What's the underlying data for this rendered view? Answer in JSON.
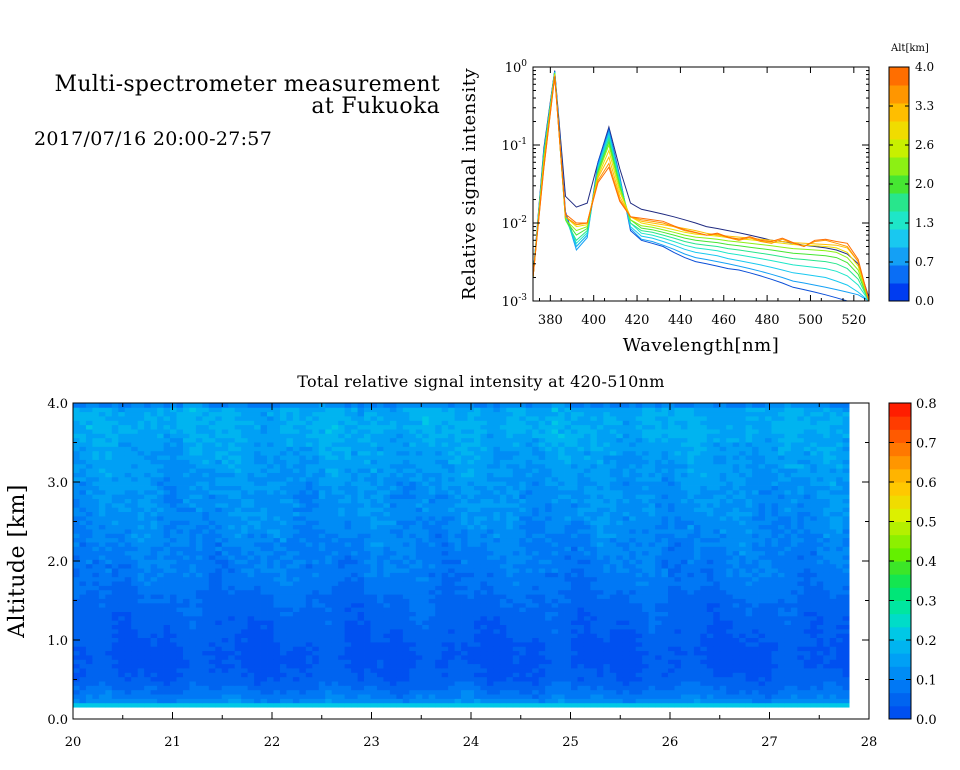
{
  "header": {
    "title_line1": "Multi-spectrometer measurement",
    "title_line2": "at Fukuoka",
    "datetime": "2017/07/16 20:00-27:57"
  },
  "chart_data": [
    {
      "type": "line",
      "title": "",
      "xlabel": "Wavelength[nm]",
      "ylabel": "Relative signal intensity",
      "xlim": [
        372,
        527
      ],
      "ylim": [
        0.001,
        1
      ],
      "yscale": "log",
      "xticks": [
        "380",
        "400",
        "420",
        "440",
        "460",
        "480",
        "500",
        "520"
      ],
      "xtick_values": [
        380,
        400,
        420,
        440,
        460,
        480,
        500,
        520
      ],
      "ytick_labels": [
        "10",
        "10",
        "10",
        "10"
      ],
      "ytick_exponents": [
        "0",
        "-1",
        "-2",
        "-3"
      ],
      "ytick_values": [
        1,
        0.1,
        0.01,
        0.001
      ],
      "x": [
        372,
        377,
        382,
        387,
        392,
        397,
        402,
        407,
        412,
        417,
        422,
        427,
        432,
        437,
        442,
        447,
        452,
        457,
        462,
        467,
        472,
        477,
        482,
        487,
        492,
        497,
        502,
        507,
        512,
        517,
        522,
        527
      ],
      "colorbar": {
        "title": "Alt[km]",
        "ticks": [
          "4.0",
          "3.3",
          "2.6",
          "2.0",
          "1.3",
          "0.7",
          "0.0"
        ],
        "colors": [
          "#003cf0",
          "#0a6ef5",
          "#14a0f5",
          "#19c8f0",
          "#1ee6c8",
          "#28e68c",
          "#46e632",
          "#8cf014",
          "#c8f000",
          "#f0dc00",
          "#ffbe00",
          "#ff9600",
          "#ff6e00"
        ]
      },
      "series": [
        {
          "color": "#1f2a80",
          "values": [
            0.002,
            0.09,
            0.9,
            0.022,
            0.016,
            0.018,
            0.06,
            0.17,
            0.05,
            0.018,
            0.015,
            0.014,
            0.013,
            0.012,
            0.011,
            0.01,
            0.009,
            0.0085,
            0.008,
            0.0075,
            0.007,
            0.0065,
            0.006,
            0.0058,
            0.0055,
            0.0052,
            0.005,
            0.0048,
            0.0045,
            0.004,
            0.003,
            0.0011
          ]
        },
        {
          "color": "#0a4fd8",
          "values": [
            0.002,
            0.08,
            0.88,
            0.014,
            0.005,
            0.007,
            0.06,
            0.16,
            0.04,
            0.008,
            0.006,
            0.0055,
            0.005,
            0.0042,
            0.0036,
            0.0032,
            0.003,
            0.0028,
            0.0026,
            0.0025,
            0.0023,
            0.0021,
            0.0019,
            0.0017,
            0.0015,
            0.0014,
            0.0013,
            0.0012,
            0.0011,
            0.001,
            0.001,
            0.001
          ]
        },
        {
          "color": "#14a0f5",
          "values": [
            0.002,
            0.08,
            0.87,
            0.013,
            0.0045,
            0.0065,
            0.055,
            0.15,
            0.038,
            0.0085,
            0.0062,
            0.0058,
            0.0052,
            0.0046,
            0.004,
            0.0036,
            0.0034,
            0.0032,
            0.003,
            0.0028,
            0.0026,
            0.0024,
            0.0022,
            0.002,
            0.0018,
            0.0017,
            0.0016,
            0.0015,
            0.0014,
            0.0013,
            0.0012,
            0.001
          ]
        },
        {
          "color": "#19c8f0",
          "values": [
            0.002,
            0.08,
            0.86,
            0.012,
            0.005,
            0.007,
            0.052,
            0.14,
            0.036,
            0.009,
            0.0068,
            0.0064,
            0.0058,
            0.0052,
            0.0046,
            0.0042,
            0.004,
            0.0038,
            0.0035,
            0.0033,
            0.0031,
            0.0029,
            0.0027,
            0.0025,
            0.0023,
            0.0022,
            0.0021,
            0.002,
            0.0018,
            0.0016,
            0.0013,
            0.001
          ]
        },
        {
          "color": "#1ee6c8",
          "values": [
            0.002,
            0.07,
            0.85,
            0.012,
            0.0055,
            0.0075,
            0.05,
            0.13,
            0.034,
            0.01,
            0.0074,
            0.007,
            0.0064,
            0.0058,
            0.0052,
            0.0048,
            0.0046,
            0.0044,
            0.0041,
            0.0039,
            0.0037,
            0.0035,
            0.0033,
            0.0031,
            0.0029,
            0.0028,
            0.0027,
            0.0026,
            0.0024,
            0.0021,
            0.0016,
            0.001
          ]
        },
        {
          "color": "#28e68c",
          "values": [
            0.002,
            0.07,
            0.84,
            0.011,
            0.006,
            0.008,
            0.048,
            0.12,
            0.032,
            0.01,
            0.008,
            0.0076,
            0.007,
            0.0064,
            0.0058,
            0.0054,
            0.0052,
            0.005,
            0.0047,
            0.0045,
            0.0043,
            0.0041,
            0.0039,
            0.0037,
            0.0035,
            0.0034,
            0.0033,
            0.0032,
            0.003,
            0.0026,
            0.0019,
            0.001
          ]
        },
        {
          "color": "#46e632",
          "values": [
            0.002,
            0.07,
            0.83,
            0.011,
            0.007,
            0.0085,
            0.045,
            0.11,
            0.03,
            0.011,
            0.0086,
            0.0082,
            0.0076,
            0.007,
            0.0064,
            0.006,
            0.0058,
            0.0056,
            0.0053,
            0.0051,
            0.0049,
            0.0047,
            0.0045,
            0.0043,
            0.0041,
            0.004,
            0.0039,
            0.0038,
            0.0036,
            0.0031,
            0.0022,
            0.001
          ]
        },
        {
          "color": "#8cf014",
          "values": [
            0.002,
            0.06,
            0.82,
            0.011,
            0.008,
            0.009,
            0.043,
            0.1,
            0.028,
            0.011,
            0.0092,
            0.0088,
            0.0082,
            0.0076,
            0.007,
            0.0066,
            0.0064,
            0.0062,
            0.0059,
            0.0057,
            0.0055,
            0.0053,
            0.0051,
            0.0049,
            0.0047,
            0.0046,
            0.0045,
            0.0044,
            0.0042,
            0.0036,
            0.0025,
            0.001
          ]
        },
        {
          "color": "#f0dc00",
          "values": [
            0.002,
            0.06,
            0.8,
            0.012,
            0.009,
            0.0095,
            0.04,
            0.085,
            0.025,
            0.012,
            0.01,
            0.0094,
            0.0088,
            0.0082,
            0.0076,
            0.0072,
            0.007,
            0.0068,
            0.0065,
            0.0063,
            0.0061,
            0.0059,
            0.0057,
            0.0055,
            0.0053,
            0.0052,
            0.0051,
            0.005,
            0.0048,
            0.0042,
            0.0028,
            0.001
          ]
        },
        {
          "color": "#ffbe00",
          "values": [
            0.002,
            0.06,
            0.78,
            0.012,
            0.0095,
            0.01,
            0.038,
            0.07,
            0.022,
            0.012,
            0.0105,
            0.01,
            0.0095,
            0.009,
            0.0085,
            0.008,
            0.0074,
            0.007,
            0.0068,
            0.0066,
            0.0064,
            0.0062,
            0.006,
            0.0058,
            0.0056,
            0.0055,
            0.0054,
            0.0053,
            0.0052,
            0.0048,
            0.0032,
            0.001
          ]
        },
        {
          "color": "#ff9600",
          "values": [
            0.002,
            0.05,
            0.76,
            0.012,
            0.0095,
            0.01,
            0.035,
            0.058,
            0.02,
            0.012,
            0.011,
            0.0105,
            0.01,
            0.009,
            0.008,
            0.0075,
            0.007,
            0.0072,
            0.0065,
            0.006,
            0.0065,
            0.0058,
            0.0055,
            0.0062,
            0.0055,
            0.005,
            0.0058,
            0.006,
            0.0055,
            0.005,
            0.0032,
            0.001
          ]
        },
        {
          "color": "#ff6e00",
          "values": [
            0.002,
            0.05,
            0.75,
            0.013,
            0.01,
            0.01,
            0.033,
            0.052,
            0.019,
            0.012,
            0.0115,
            0.011,
            0.0105,
            0.0092,
            0.0082,
            0.0076,
            0.007,
            0.0074,
            0.0066,
            0.0062,
            0.0067,
            0.006,
            0.0058,
            0.0064,
            0.0056,
            0.005,
            0.006,
            0.0062,
            0.0058,
            0.0055,
            0.0034,
            0.001
          ]
        }
      ]
    },
    {
      "type": "heatmap",
      "title": "Total relative signal intensity at 420-510nm",
      "xlabel": "",
      "ylabel": "Altitude [km]",
      "xlim": [
        20,
        28
      ],
      "ylim": [
        0,
        4
      ],
      "xticks": [
        "20",
        "21",
        "22",
        "23",
        "24",
        "25",
        "26",
        "27",
        "28"
      ],
      "yticks": [
        "0.0",
        "1.0",
        "2.0",
        "3.0",
        "4.0"
      ],
      "data_x_range": [
        20.0,
        27.8
      ],
      "data_y_range": [
        0.15,
        4.0
      ],
      "colorbar": {
        "ticks": [
          "0.8",
          "0.7",
          "0.6",
          "0.5",
          "0.4",
          "0.3",
          "0.2",
          "0.1",
          "0.0"
        ],
        "range": [
          0,
          0.8
        ],
        "colors": [
          "#0050f0",
          "#0064f0",
          "#0078f5",
          "#008cf5",
          "#00a0f5",
          "#00b4f0",
          "#00c8e6",
          "#00dcc8",
          "#00e6a0",
          "#00e678",
          "#14e650",
          "#3ce628",
          "#64f000",
          "#8cf000",
          "#b4f000",
          "#dcf000",
          "#f0dc00",
          "#ffc800",
          "#ffb400",
          "#ff9600",
          "#ff7800",
          "#ff5a00",
          "#ff3c00",
          "#ff1e00"
        ]
      },
      "altitude_profile": [
        {
          "alt": 0.15,
          "value": 0.18
        },
        {
          "alt": 0.25,
          "value": 0.1
        },
        {
          "alt": 0.5,
          "value": 0.04
        },
        {
          "alt": 0.8,
          "value": 0.025
        },
        {
          "alt": 1.1,
          "value": 0.04
        },
        {
          "alt": 1.5,
          "value": 0.06
        },
        {
          "alt": 1.8,
          "value": 0.085
        },
        {
          "alt": 2.2,
          "value": 0.1
        },
        {
          "alt": 2.6,
          "value": 0.12
        },
        {
          "alt": 3.0,
          "value": 0.13
        },
        {
          "alt": 3.4,
          "value": 0.15
        },
        {
          "alt": 3.7,
          "value": 0.17
        },
        {
          "alt": 3.95,
          "value": 0.16
        },
        {
          "alt": 4.0,
          "value": 0.04
        }
      ]
    }
  ]
}
